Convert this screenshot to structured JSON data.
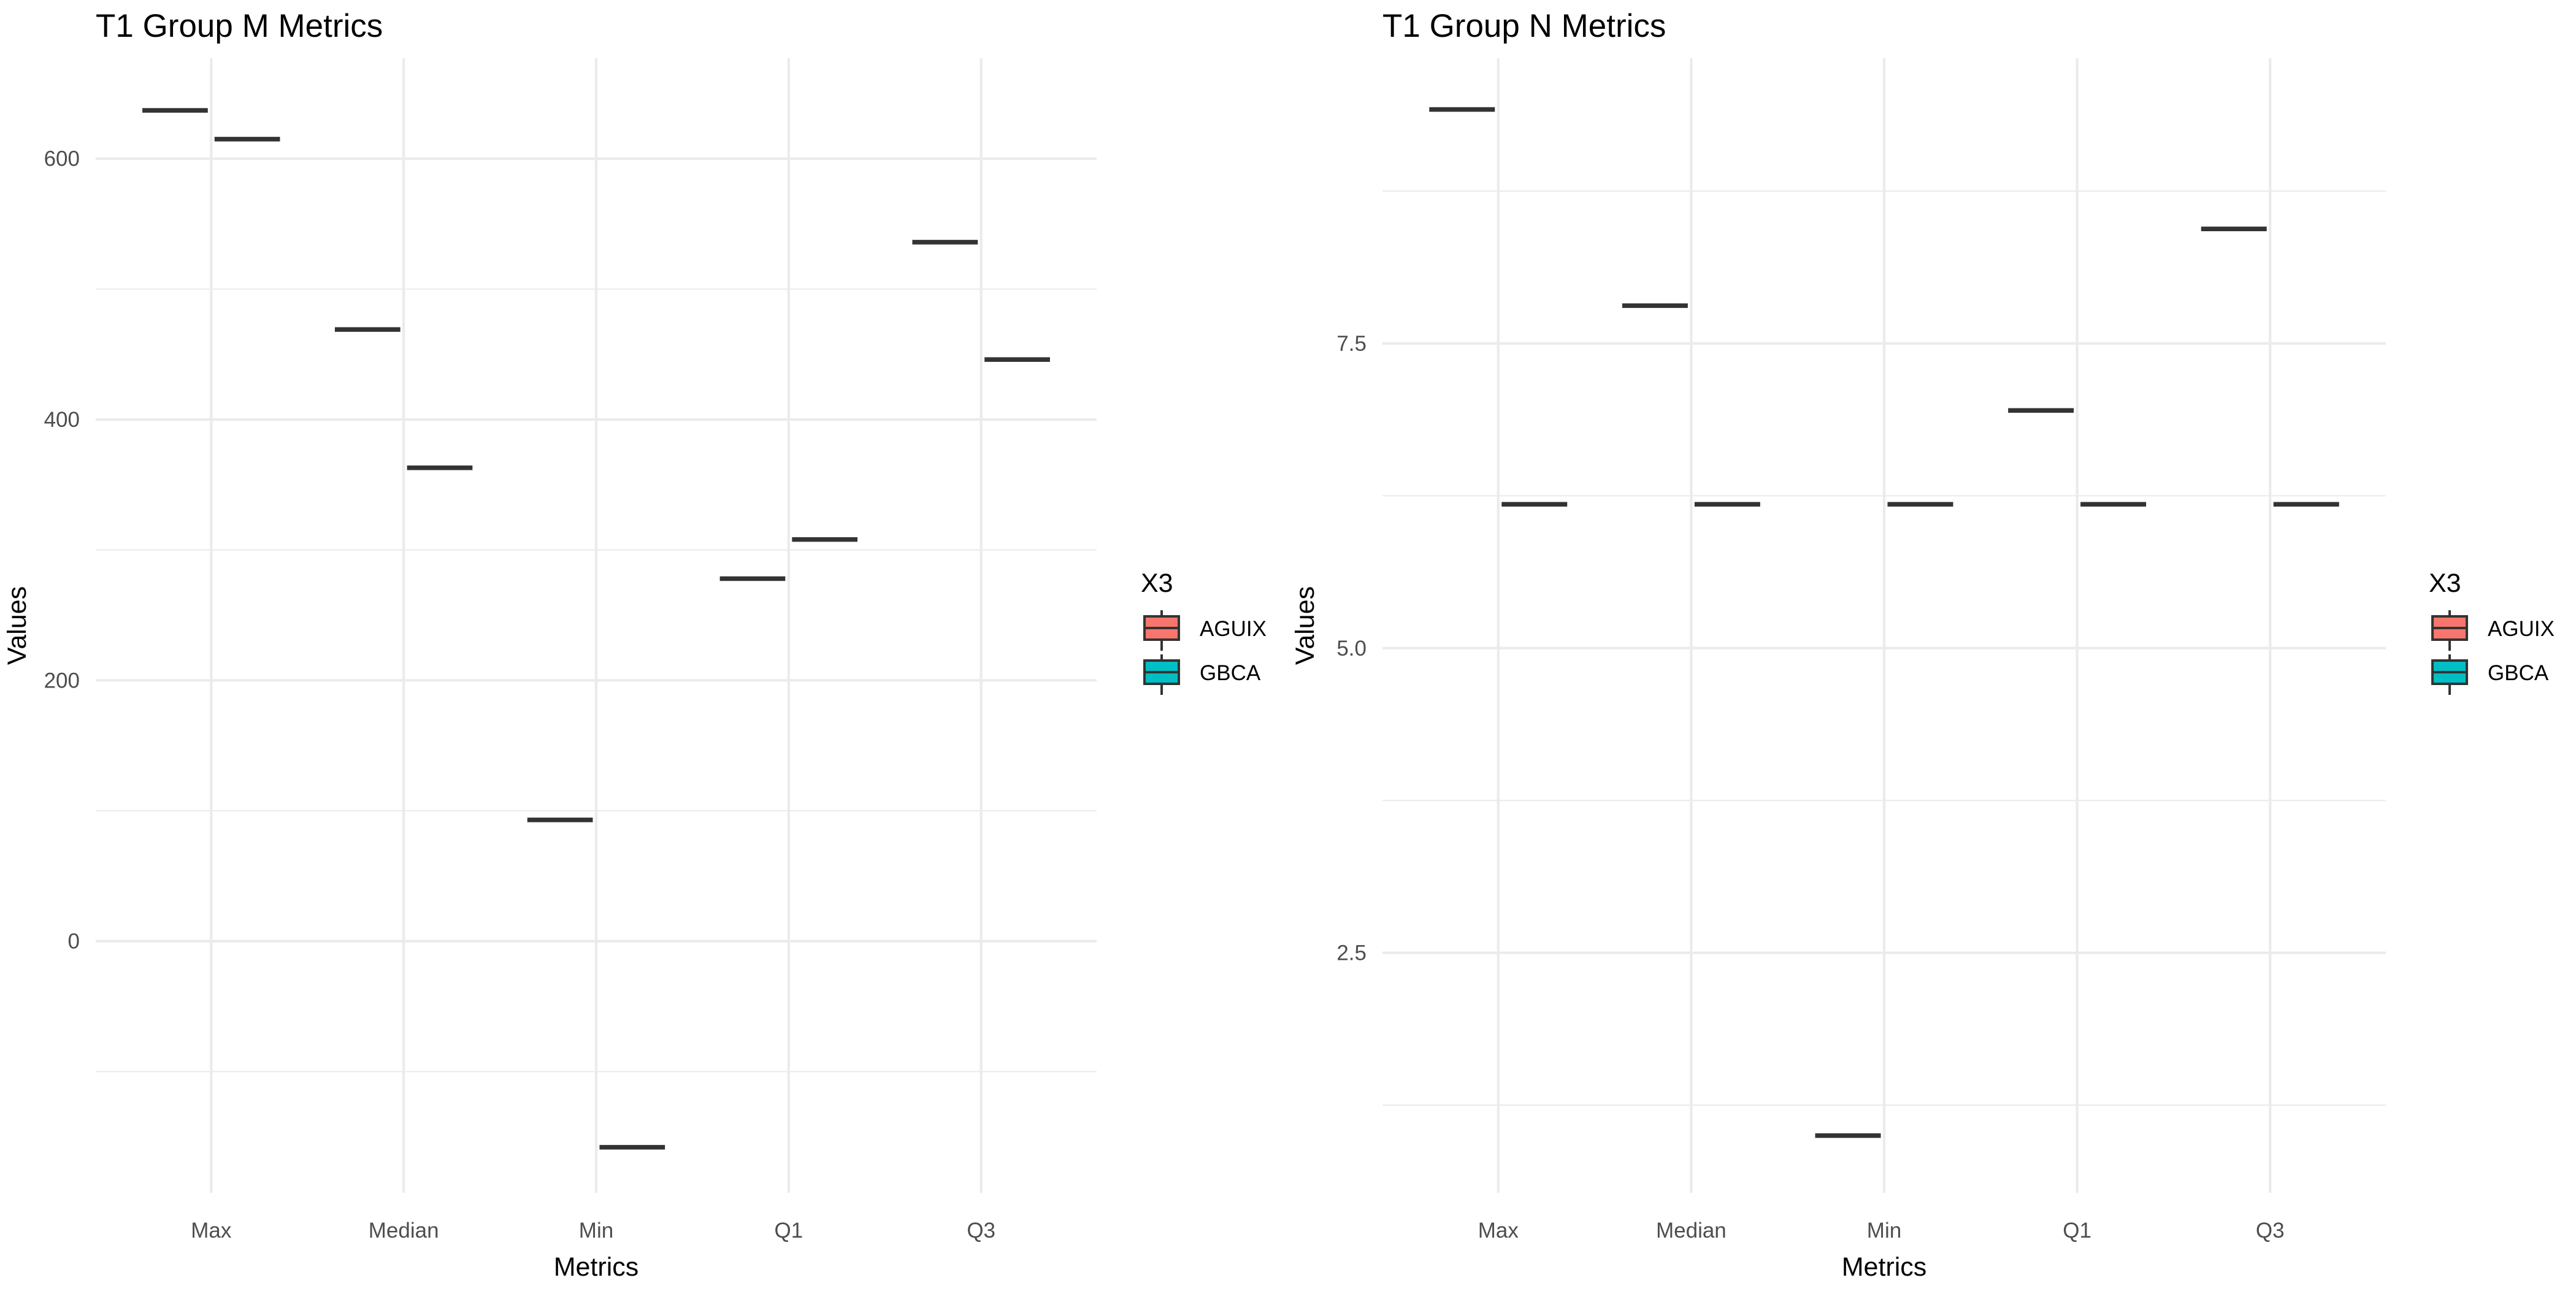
{
  "chart_data": [
    {
      "type": "box",
      "title": "T1 Group M Metrics",
      "xlabel": "Metrics",
      "ylabel": "Values",
      "categories": [
        "Max",
        "Median",
        "Min",
        "Q1",
        "Q3"
      ],
      "ylim": [
        -193,
        677
      ],
      "y_ticks": [
        0,
        200,
        400,
        600
      ],
      "y_tick_labels": [
        "0",
        "200",
        "400",
        "600"
      ],
      "y_minor_ticks": [
        -100,
        100,
        300,
        500
      ],
      "grid": true,
      "legend": {
        "title": "X3",
        "position": "right"
      },
      "series": [
        {
          "name": "AGUIX",
          "color": "#F8766D",
          "values": [
            637,
            469,
            93,
            278,
            536
          ]
        },
        {
          "name": "GBCA",
          "color": "#00BFC4",
          "values": [
            615,
            363,
            -158,
            308,
            446
          ]
        }
      ]
    },
    {
      "type": "box",
      "title": "T1 Group N Metrics",
      "xlabel": "Metrics",
      "ylabel": "Values",
      "categories": [
        "Max",
        "Median",
        "Min",
        "Q1",
        "Q3"
      ],
      "ylim": [
        0.53,
        9.84
      ],
      "y_ticks": [
        2.5,
        5.0,
        7.5
      ],
      "y_tick_labels": [
        "2.5",
        "5.0",
        "7.5"
      ],
      "y_minor_ticks": [
        1.25,
        3.75,
        6.25,
        8.75
      ],
      "grid": true,
      "legend": {
        "title": "X3",
        "position": "right"
      },
      "series": [
        {
          "name": "AGUIX",
          "color": "#F8766D",
          "values": [
            9.42,
            7.81,
            1.0,
            6.95,
            8.44
          ]
        },
        {
          "name": "GBCA",
          "color": "#00BFC4",
          "values": [
            6.18,
            6.18,
            6.18,
            6.18,
            6.18
          ]
        }
      ]
    }
  ]
}
